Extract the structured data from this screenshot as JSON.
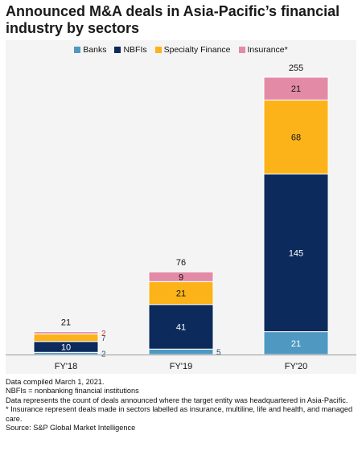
{
  "title": "Announced M&A deals in Asia-Pacific’s financial industry by sectors",
  "colors": {
    "Banks": "#4f98c2",
    "NBFIs": "#0c2a5b",
    "Specialty Finance": "#fcb319",
    "Insurance*": "#e38ba6",
    "axis": "#9a9a9a",
    "small_label": "#c0392b"
  },
  "chart_data": {
    "type": "bar",
    "stacked": true,
    "categories": [
      "FY'18",
      "FY'19",
      "FY'20"
    ],
    "series": [
      {
        "name": "Banks",
        "values": [
          2,
          5,
          21
        ]
      },
      {
        "name": "NBFIs",
        "values": [
          10,
          41,
          145
        ]
      },
      {
        "name": "Specialty Finance",
        "values": [
          7,
          21,
          68
        ]
      },
      {
        "name": "Insurance*",
        "values": [
          2,
          9,
          21
        ]
      }
    ],
    "totals": [
      21,
      76,
      255
    ],
    "ylim": [
      0,
      255
    ],
    "grid": false,
    "legend": "top-center"
  },
  "footnotes": [
    "Data compiled March 1, 2021.",
    "NBFIs = nonbanking financial institutions",
    "Data represents the count of deals announced where the target entity was headquartered in Asia-Pacific.",
    "* Insurance represent deals made in sectors labelled as insurance, multiline, life and health, and managed care.",
    "Source: S&P Global Market Intelligence"
  ]
}
